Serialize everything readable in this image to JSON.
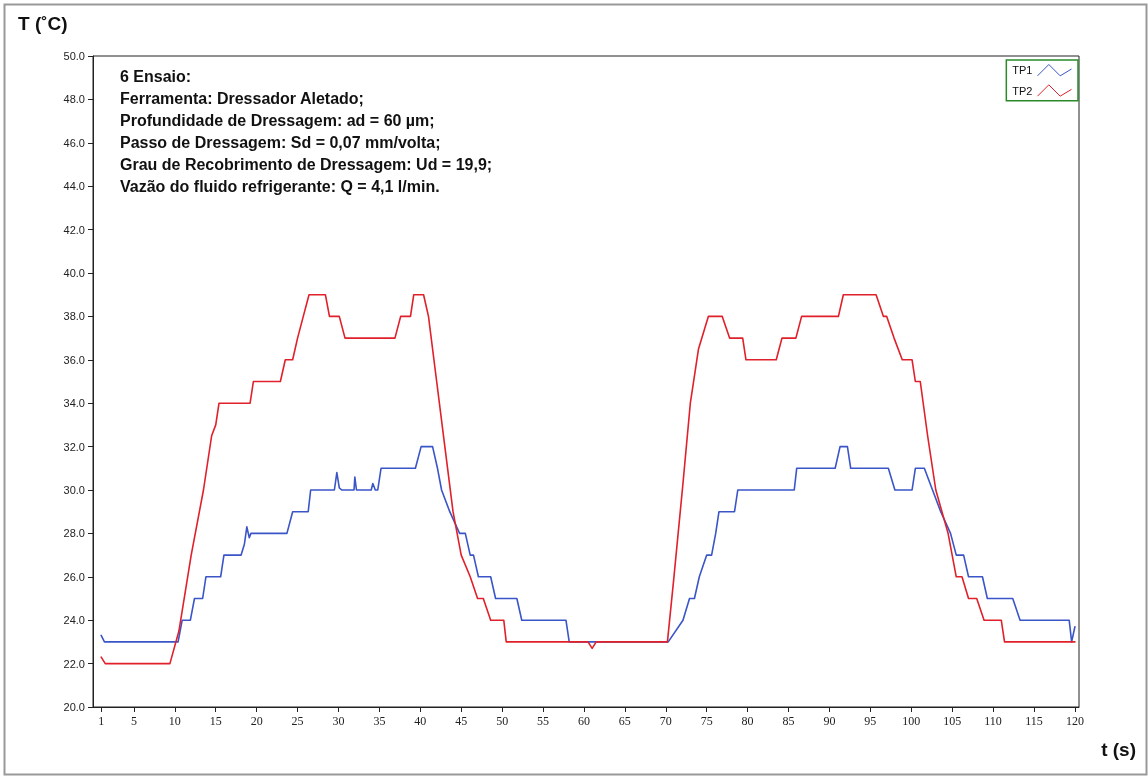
{
  "chart_data": {
    "type": "line",
    "xlabel": "t (s)",
    "ylabel": "T (˚C)",
    "annotations": [
      "6 Ensaio:",
      "Ferramenta: Dressador Aletado;",
      "Profundidade de Dressagem: ad = 60 µm;",
      "Passo de Dressagem: Sd = 0,07 mm/volta;",
      "Grau de Recobrimento de Dressagem: Ud = 19,9;",
      "Vazão do fluido refrigerante: Q = 4,1 l/min."
    ],
    "xlim": [
      0,
      120.5
    ],
    "xticks": [
      1,
      5,
      10,
      15,
      20,
      25,
      30,
      35,
      40,
      45,
      50,
      55,
      60,
      65,
      70,
      75,
      80,
      85,
      90,
      95,
      100,
      105,
      110,
      115,
      120
    ],
    "ylim": [
      20,
      50
    ],
    "yticks": [
      {
        "value": 20,
        "label": "20.0"
      },
      {
        "value": 22,
        "label": "22.0"
      },
      {
        "value": 24,
        "label": "24.0"
      },
      {
        "value": 26,
        "label": "26.0"
      },
      {
        "value": 28,
        "label": "28.0"
      },
      {
        "value": 30,
        "label": "30.0"
      },
      {
        "value": 32,
        "label": "32.0"
      },
      {
        "value": 34,
        "label": "34.0"
      },
      {
        "value": 36,
        "label": "36.0"
      },
      {
        "value": 38,
        "label": "38.0"
      },
      {
        "value": 40,
        "label": "40.0"
      },
      {
        "value": 42,
        "label": "42.0"
      },
      {
        "value": 44,
        "label": "44.0"
      },
      {
        "value": 46,
        "label": "46.0"
      },
      {
        "value": 48,
        "label": "48.0"
      },
      {
        "value": 50,
        "label": "50.0"
      }
    ],
    "grid": false,
    "legend": "top right",
    "marker": "none",
    "line_style": "solid",
    "series": [
      {
        "name": "TP1",
        "color": "#3a55c8",
        "x": [
          1,
          1.4,
          10.4,
          10.9,
          11.9,
          12.4,
          13.4,
          13.8,
          15.6,
          16,
          18.1,
          18.5,
          18.8,
          19.1,
          19.3,
          23.7,
          24.4,
          26.3,
          26.6,
          29.5,
          29.8,
          30.1,
          30.4,
          31.9,
          32,
          32.2,
          33,
          34,
          34.2,
          34.5,
          34.8,
          35.2,
          39.4,
          40.1,
          41.5,
          42.1,
          42.6,
          43.6,
          44.8,
          45.5,
          46.1,
          46.5,
          47.1,
          48.6,
          49.2,
          51.8,
          52.4,
          57.8,
          58.2,
          70.3,
          72.1,
          72.9,
          73.5,
          74.1,
          75,
          75.6,
          76.1,
          76.5,
          78.4,
          78.8,
          85.7,
          86,
          90.7,
          91.3,
          92.2,
          92.6,
          97.2,
          98,
          100.1,
          100.5,
          101.6,
          102.6,
          103.6,
          104.8,
          105.5,
          106.4,
          107,
          108.7,
          109.3,
          112.4,
          113.3,
          119.3,
          119.6,
          120
        ],
        "values": [
          23.3,
          23,
          23,
          24,
          24,
          25,
          25,
          26,
          26,
          27,
          27,
          27.5,
          28.3,
          27.8,
          28,
          28,
          29,
          29,
          30,
          30,
          30.8,
          30.1,
          30,
          30,
          30.6,
          30,
          30,
          30,
          30.3,
          30,
          30,
          31,
          31,
          32,
          32,
          31,
          30,
          29,
          28,
          28,
          27,
          27,
          26,
          26,
          25,
          25,
          24,
          24,
          23,
          23,
          24,
          25,
          25,
          26,
          27,
          27,
          28,
          29,
          29,
          30,
          30,
          31,
          31,
          32,
          32,
          31,
          31,
          30,
          30,
          31,
          31,
          30,
          29,
          28,
          27,
          27,
          26,
          26,
          25,
          25,
          24,
          24,
          23,
          23.7
        ]
      },
      {
        "name": "TP2",
        "color": "#e0202a",
        "x": [
          1,
          1.5,
          9.4,
          10.5,
          12,
          13.5,
          14.5,
          15,
          15.4,
          19.2,
          19.6,
          22.9,
          23.5,
          24.4,
          25,
          25.7,
          26.4,
          28.4,
          28.9,
          30.1,
          30.8,
          36.9,
          37.6,
          38.8,
          39.2,
          40.4,
          41,
          42,
          43,
          44,
          45,
          46.1,
          47,
          47.7,
          48.6,
          50.2,
          50.5,
          60.5,
          61,
          61.5,
          70.2,
          71,
          72.1,
          73,
          74,
          75.2,
          76.9,
          77.8,
          79.4,
          79.8,
          83.5,
          84.2,
          85.9,
          86.6,
          91.1,
          91.7,
          95.7,
          96.6,
          97,
          97.9,
          98.9,
          100.1,
          100.5,
          101.1,
          102,
          103,
          104.5,
          105.5,
          106.2,
          107,
          108,
          108.9,
          111,
          111.4,
          120
        ],
        "values": [
          22.3,
          22,
          22,
          23.5,
          27,
          30,
          32.5,
          33,
          34,
          34,
          35,
          35,
          36,
          36,
          37,
          38,
          39,
          39,
          38,
          38,
          37,
          37,
          38,
          38,
          39,
          39,
          38,
          35,
          32,
          29,
          27,
          26,
          25,
          25,
          24,
          24,
          23,
          23,
          22.7,
          23,
          23,
          26,
          30.3,
          34,
          36.5,
          38,
          38,
          37,
          37,
          36,
          36,
          37,
          37,
          38,
          38,
          39,
          39,
          38,
          38,
          37,
          36,
          36,
          35,
          35,
          32.5,
          30,
          28,
          26,
          26,
          25,
          25,
          24,
          24,
          23,
          23
        ]
      }
    ]
  }
}
